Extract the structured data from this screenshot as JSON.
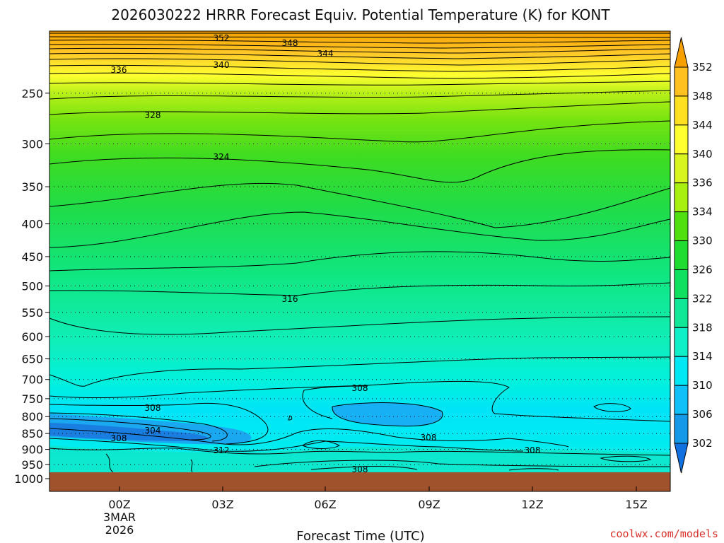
{
  "chart_data": {
    "type": "heatmap",
    "title": "2026030222 HRRR Forecast Equiv. Potential Temperature (K) for KONT",
    "xlabel": "Forecast Time (UTC)",
    "ylabel": "",
    "y_scale": "log",
    "y_inverted": true,
    "ylim": [
      1000,
      200
    ],
    "y_ticks": [
      250,
      300,
      350,
      400,
      450,
      500,
      550,
      600,
      650,
      700,
      750,
      800,
      850,
      900,
      950,
      1000
    ],
    "x_ticks": [
      {
        "label": "00Z",
        "date_lines": [
          "3MAR",
          "2026"
        ]
      },
      {
        "label": "03Z",
        "date_lines": []
      },
      {
        "label": "06Z",
        "date_lines": []
      },
      {
        "label": "09Z",
        "date_lines": []
      },
      {
        "label": "12Z",
        "date_lines": []
      },
      {
        "label": "15Z",
        "date_lines": []
      }
    ],
    "colorbar": {
      "levels": [
        352,
        348,
        344,
        340,
        336,
        334,
        330,
        326,
        322,
        318,
        314,
        310,
        306,
        302
      ],
      "colors": [
        "#f5a000",
        "#ffc020",
        "#ffe020",
        "#ffff30",
        "#d8f520",
        "#a8f010",
        "#50e010",
        "#20dc30",
        "#10e060",
        "#10e898",
        "#10f0c8",
        "#00e8f4",
        "#10c0f8",
        "#1498e8",
        "#1070e0"
      ]
    },
    "contour_labels": [
      {
        "value": "352"
      },
      {
        "value": "348"
      },
      {
        "value": "344"
      },
      {
        "value": "340"
      },
      {
        "value": "336"
      },
      {
        "value": "328"
      },
      {
        "value": "324"
      },
      {
        "value": "316"
      },
      {
        "value": "308"
      },
      {
        "value": "308"
      },
      {
        "value": "304"
      },
      {
        "value": "308"
      },
      {
        "value": "312"
      },
      {
        "value": "308"
      },
      {
        "value": "308"
      },
      {
        "value": "308"
      }
    ],
    "ground_color": "#a0522d"
  },
  "credit": "coolwx.com/models"
}
